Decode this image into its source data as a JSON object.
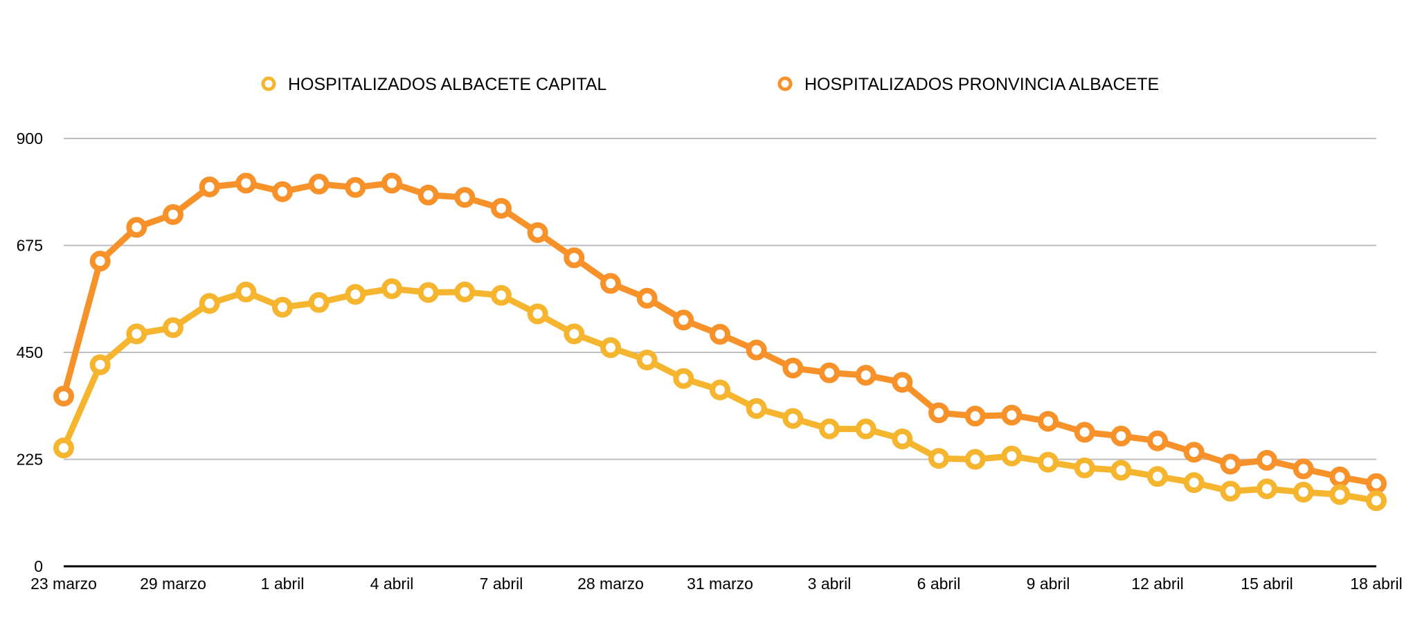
{
  "chart_data": {
    "type": "line",
    "x_tick_labels": [
      "23 marzo",
      "29 marzo",
      "1 abril",
      "4 abril",
      "7 abril",
      "28 marzo",
      "31 marzo",
      "3 abril",
      "6 abril",
      "9 abril",
      "12 abril",
      "15 abril",
      "18 abril"
    ],
    "ylim": [
      0,
      900
    ],
    "yticks": [
      0,
      225,
      450,
      675,
      900
    ],
    "grid": true,
    "legend_position": "top",
    "series": [
      {
        "name": "HOSPITALIZADOS ALBACETE CAPITAL",
        "color": "#F5B52E",
        "values": [
          249,
          424,
          489,
          502,
          553,
          577,
          545,
          555,
          572,
          584,
          576,
          577,
          570,
          531,
          489,
          460,
          434,
          395,
          371,
          332,
          311,
          289,
          289,
          268,
          227,
          225,
          232,
          219,
          207,
          202,
          189,
          176,
          158,
          163,
          156,
          151,
          138
        ]
      },
      {
        "name": "HOSPITALIZADOS PRONVINCIA ALBACETE",
        "color": "#F7922A",
        "values": [
          358,
          642,
          713,
          740,
          798,
          806,
          788,
          804,
          797,
          806,
          781,
          776,
          753,
          702,
          649,
          595,
          564,
          518,
          488,
          455,
          417,
          407,
          402,
          387,
          323,
          316,
          318,
          305,
          282,
          274,
          264,
          240,
          215,
          223,
          205,
          188,
          174
        ]
      }
    ]
  }
}
